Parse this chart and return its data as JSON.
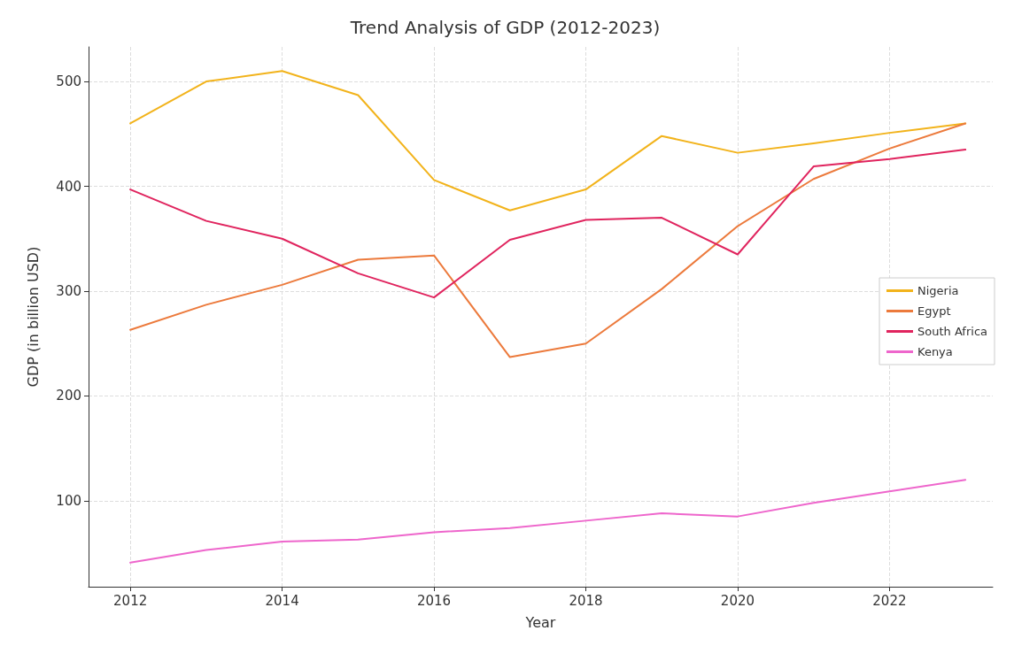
{
  "chart_data": {
    "type": "line",
    "title": "Trend Analysis of GDP (2012-2023)",
    "xlabel": "Year",
    "ylabel": "GDP (in billion USD)",
    "x": [
      2012,
      2013,
      2014,
      2015,
      2016,
      2017,
      2018,
      2019,
      2020,
      2021,
      2022,
      2023
    ],
    "series": [
      {
        "name": "Nigeria",
        "color": "#f2b31b",
        "values": [
          460,
          500,
          510,
          487,
          406,
          377,
          397,
          448,
          432,
          441,
          451,
          460
        ]
      },
      {
        "name": "Egypt",
        "color": "#ec7a3c",
        "values": [
          263,
          287,
          306,
          330,
          334,
          237,
          250,
          302,
          362,
          407,
          436,
          460
        ]
      },
      {
        "name": "South Africa",
        "color": "#e0245e",
        "values": [
          397,
          367,
          350,
          317,
          294,
          349,
          368,
          370,
          335,
          419,
          426,
          435
        ]
      },
      {
        "name": "Kenya",
        "color": "#ee66cc",
        "values": [
          41,
          53,
          61,
          63,
          70,
          74,
          81,
          88,
          85,
          98,
          109,
          120
        ]
      }
    ],
    "xlim": [
      2011.45,
      2023.36
    ],
    "xticks": [
      2012,
      2014,
      2016,
      2018,
      2020,
      2022
    ],
    "ylim": [
      18,
      533
    ],
    "yticks": [
      100,
      200,
      300,
      400,
      500
    ],
    "grid": true,
    "legend": "right",
    "marker": "none",
    "line_style": "solid"
  }
}
